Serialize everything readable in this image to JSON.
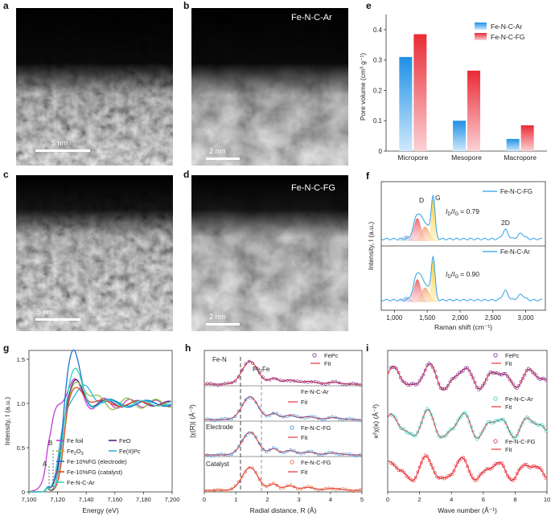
{
  "panels": {
    "a": {
      "letter": "a",
      "scale_label": "5 nm"
    },
    "b": {
      "letter": "b",
      "title": "Fe-N-C-Ar",
      "scale_label": "2 nm"
    },
    "c": {
      "letter": "c",
      "scale_label": "5 nm"
    },
    "d": {
      "letter": "d",
      "title": "Fe-N-C-FG",
      "scale_label": "2 nm"
    },
    "e": {
      "letter": "e"
    },
    "f": {
      "letter": "f"
    },
    "g": {
      "letter": "g"
    },
    "h": {
      "letter": "h"
    },
    "i": {
      "letter": "i"
    }
  },
  "colors": {
    "ar_blue": "#2f9fe8",
    "fg_red": "#e8333b",
    "purple": "#6a1b9a",
    "magenta": "#c23bd4"
  },
  "chart_data": [
    {
      "id": "e",
      "type": "bar",
      "categories": [
        "Micropore",
        "Mesopore",
        "Macropore"
      ],
      "series": [
        {
          "name": "Fe-N-C-Ar",
          "values": [
            0.31,
            0.1,
            0.04
          ]
        },
        {
          "name": "Fe-N-C-FG",
          "values": [
            0.385,
            0.265,
            0.085
          ]
        }
      ],
      "ylabel": "Pore volume (cm³ g⁻¹)",
      "ylim": [
        0,
        0.45
      ],
      "yticks": [
        "0",
        "0.1",
        "0.2",
        "0.3",
        "0.4"
      ],
      "legend": "top-right"
    },
    {
      "id": "f",
      "type": "line",
      "xlabel": "Raman shift (cm⁻¹)",
      "ylabel": "Intensity, I (a.u.)",
      "xlim": [
        800,
        3300
      ],
      "xticks": [
        "1,000",
        "1,500",
        "2,000",
        "2,500",
        "3,000"
      ],
      "series": [
        {
          "name": "Fe-N-C-FG",
          "ratio_label": "ID/IG = 0.79"
        },
        {
          "name": "Fe-N-C-Ar",
          "ratio_label": "ID/IG = 0.90"
        }
      ],
      "peak_labels": [
        "D",
        "G",
        "2D"
      ],
      "ratio_base": "I",
      "ratio_sub_d": "D",
      "ratio_sep": "/",
      "ratio_sub_g": "G",
      "ratio_values": [
        "= 0.79",
        "= 0.90"
      ]
    },
    {
      "id": "g",
      "type": "line",
      "xlabel": "Energy (eV)",
      "ylabel": "Intensity, I (a.u.)",
      "xlim": [
        7100,
        7200
      ],
      "ylim": [
        0,
        1.6
      ],
      "xticks": [
        "7,100",
        "7,120",
        "7,140",
        "7,160",
        "7,180",
        "7,200"
      ],
      "yticks": [
        "0",
        "0.5",
        "1.0",
        "1.5"
      ],
      "annotations": [
        "A",
        "B"
      ],
      "series": [
        {
          "name": "Fe foil"
        },
        {
          "name": "FeO"
        },
        {
          "name": "Fe2O3"
        },
        {
          "name": "Fe(II)Pc"
        },
        {
          "name": "Fe-10%FG (electrode)"
        },
        {
          "name": "Fe-10%FG (catalyst)"
        },
        {
          "name": "Fe-N-C-Ar"
        }
      ],
      "legend_text": {
        "fe_foil": "Fe foil",
        "feo": "FeO",
        "fe2o3_base": "Fe",
        "fe2o3_s1": "2",
        "fe2o3_o": "O",
        "fe2o3_s2": "3",
        "fepc": "Fe(II)Pc",
        "electrode": "Fe-10%FG (electrode)",
        "catalyst": "Fe-10%FG (catalyst)",
        "ar": "Fe-N-C-Ar"
      }
    },
    {
      "id": "h",
      "type": "line",
      "xlabel": "Radial distance, R (Å)",
      "ylabel": "|χ(R)| (Å⁻³)",
      "xlim": [
        0,
        5
      ],
      "xticks": [
        "0",
        "1",
        "2",
        "3",
        "4",
        "5"
      ],
      "annotations": [
        "Fe-N",
        "Fe-Fe",
        "Electrode",
        "Catalyst"
      ],
      "series": [
        {
          "name": "FePc"
        },
        {
          "name": "Fe-N-C-Ar"
        },
        {
          "name": "Fe-N-C-FG"
        },
        {
          "name": "Fe-N-C-FG"
        }
      ],
      "fit_label": "Fit"
    },
    {
      "id": "i",
      "type": "line",
      "xlabel": "Wave number (Å⁻¹)",
      "ylabel": "κ²χ(κ) (Å⁻²)",
      "xlim": [
        0,
        10
      ],
      "xticks": [
        "0",
        "2",
        "4",
        "6",
        "8",
        "10"
      ],
      "series": [
        {
          "name": "FePc"
        },
        {
          "name": "Fe-N-C-Ar"
        },
        {
          "name": "Fe-N-C-FG"
        }
      ],
      "fit_label": "Fit"
    }
  ]
}
